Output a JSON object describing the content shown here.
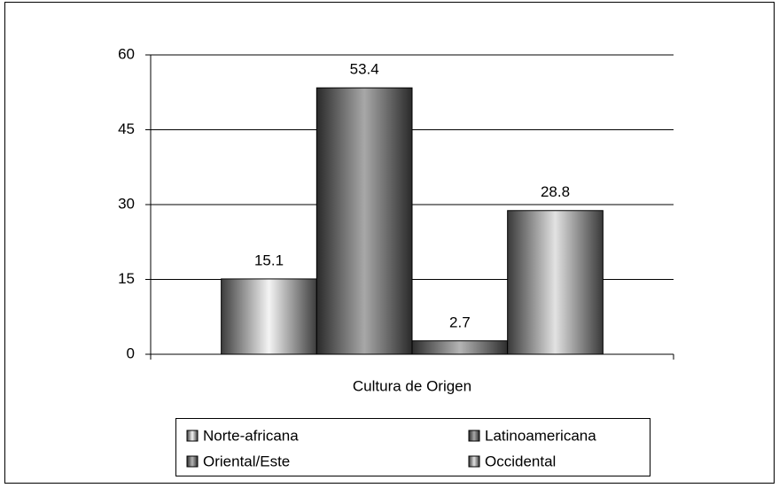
{
  "chart_data": {
    "type": "bar",
    "categories": [
      "Cultura de Origen"
    ],
    "series": [
      {
        "name": "Norte-africana",
        "color": "#f4f4f4",
        "values": [
          15.1
        ]
      },
      {
        "name": "Latinoamericana",
        "color": "#a8a8a8",
        "values": [
          53.4
        ]
      },
      {
        "name": "Oriental/Este",
        "color": "#b4b4b4",
        "values": [
          2.7
        ]
      },
      {
        "name": "Occidental",
        "color": "#e2e2e2",
        "values": [
          28.8
        ]
      }
    ],
    "ylim": [
      0,
      60
    ],
    "yticks": [
      0,
      15,
      30,
      45,
      60
    ],
    "grid": true,
    "legend": "bottom"
  }
}
